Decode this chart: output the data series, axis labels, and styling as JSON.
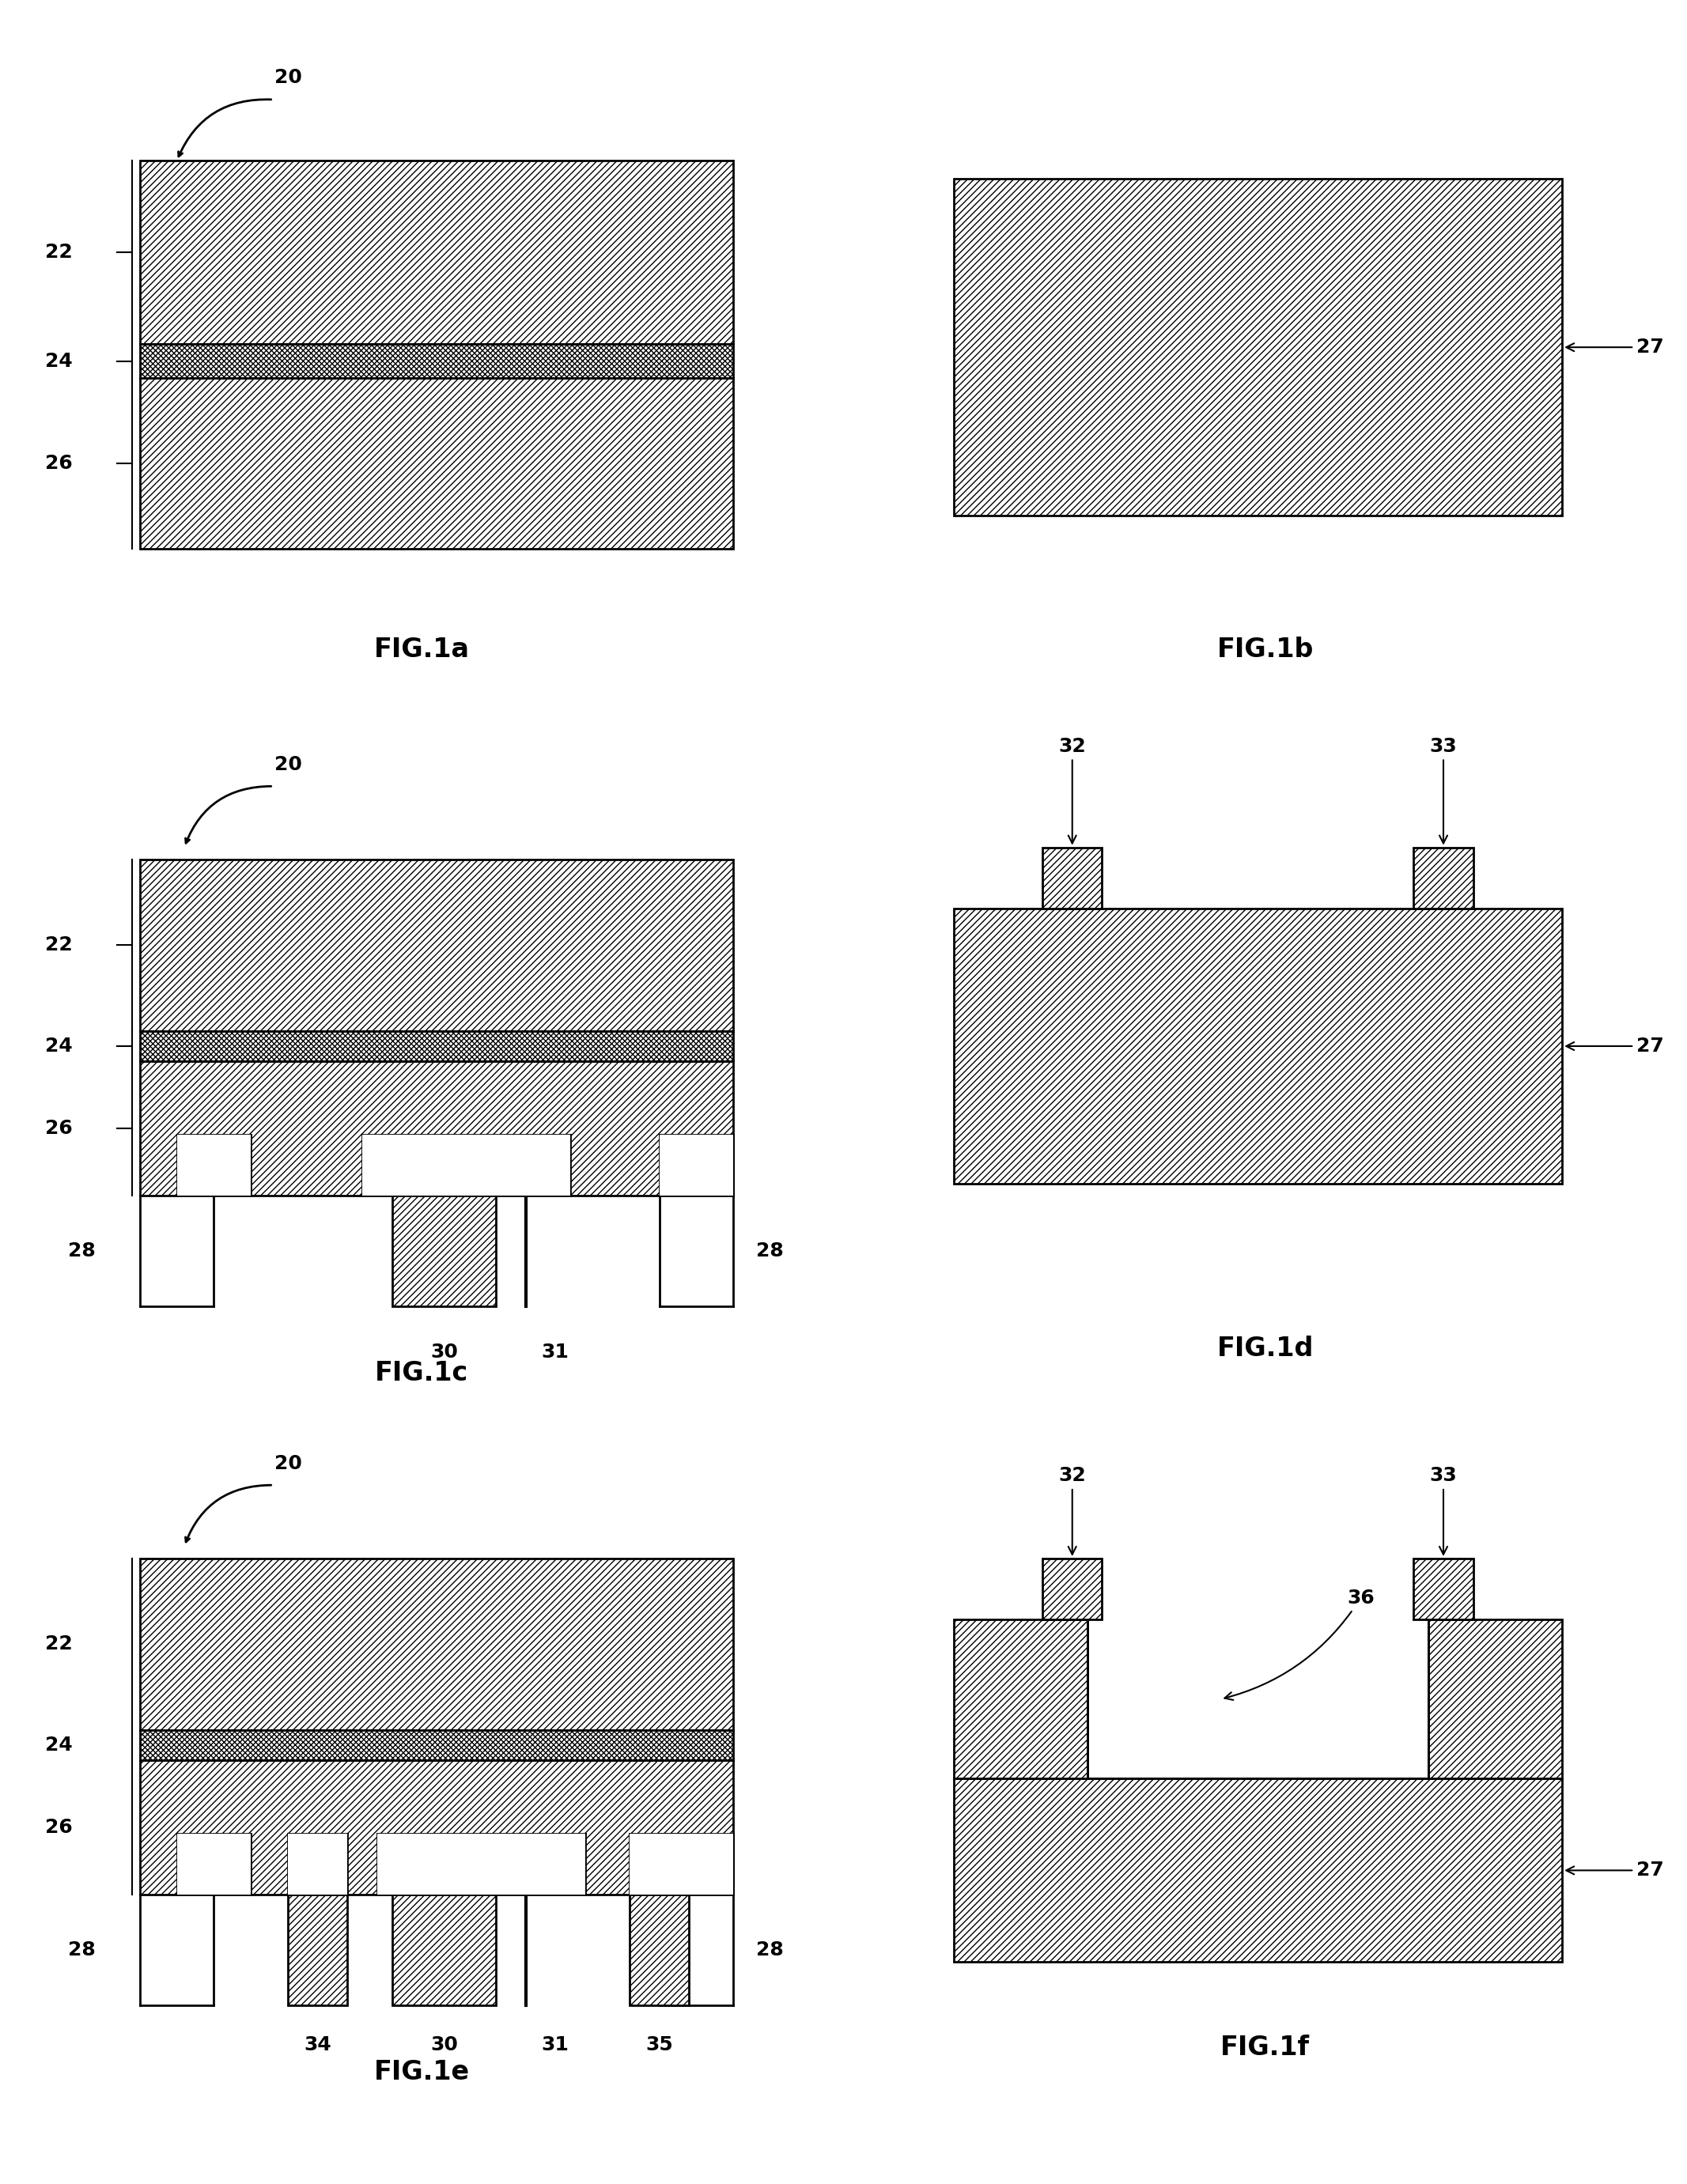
{
  "bg_color": "#ffffff",
  "fig_labels": [
    "FIG.1a",
    "FIG.1b",
    "FIG.1c",
    "FIG.1d",
    "FIG.1e",
    "FIG.1f"
  ],
  "annot_fs": 18,
  "figlabel_fs": 24,
  "lw": 2.0,
  "hatch_main": "////",
  "hatch_thin": "XXXX",
  "hatch_small": "////"
}
